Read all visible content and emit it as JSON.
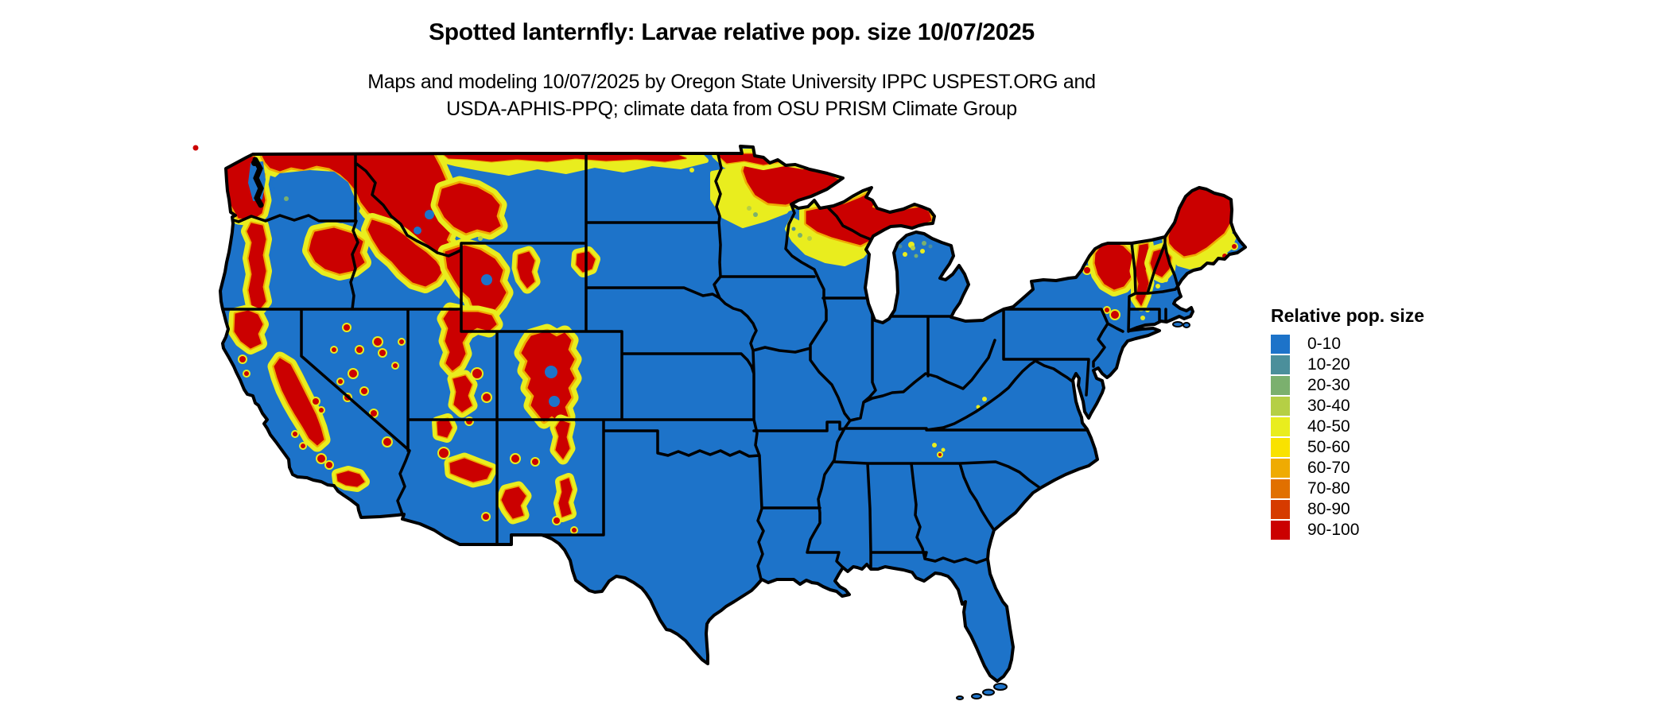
{
  "header": {
    "title": "Spotted lanternfly: Larvae relative pop. size 10/07/2025",
    "subtitle_line1": "Maps and modeling 10/07/2025 by Oregon State University IPPC USPEST.ORG and",
    "subtitle_line2": "USDA-APHIS-PPQ; climate data from OSU PRISM Climate Group"
  },
  "legend": {
    "title": "Relative pop. size",
    "items": [
      {
        "label": "0-10",
        "color": "#1d73c9"
      },
      {
        "label": "10-20",
        "color": "#4b8f9b"
      },
      {
        "label": "20-30",
        "color": "#7bb06e"
      },
      {
        "label": "30-40",
        "color": "#b5cf45"
      },
      {
        "label": "40-50",
        "color": "#e9ed1e"
      },
      {
        "label": "50-60",
        "color": "#f9e200"
      },
      {
        "label": "60-70",
        "color": "#efab02"
      },
      {
        "label": "70-80",
        "color": "#e17000"
      },
      {
        "label": "80-90",
        "color": "#d63b00"
      },
      {
        "label": "90-100",
        "color": "#cb0000"
      }
    ]
  },
  "map": {
    "region": "Contiguous United States",
    "background_color": "#ffffff",
    "state_border_color": "#000000",
    "base_fill_legend_label": "0-10"
  }
}
